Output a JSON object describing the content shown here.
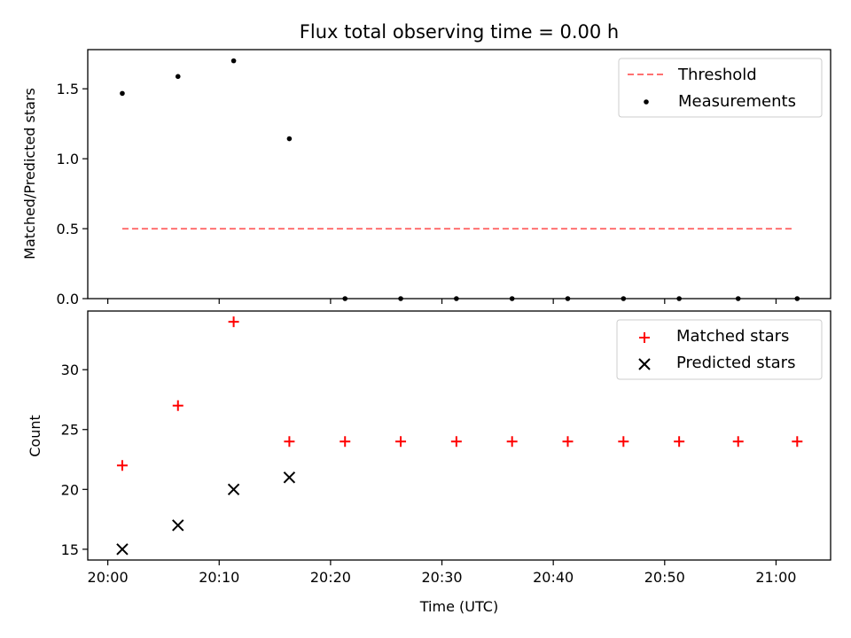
{
  "chart_data": {
    "title": "Flux total observing time = 0.00 h",
    "xlabel": "Time (UTC)",
    "x_ticks": [
      "20:00",
      "20:10",
      "20:20",
      "20:30",
      "20:40",
      "20:50",
      "21:00"
    ],
    "x_tick_minutes": [
      0,
      10,
      20,
      30,
      40,
      50,
      60
    ],
    "xlim_minutes": [
      -1.8,
      64.9
    ],
    "top": {
      "type": "scatter",
      "ylabel": "Matched/Predicted stars",
      "ylim": [
        0,
        1.78
      ],
      "y_ticks": [
        0.0,
        0.5,
        1.0,
        1.5
      ],
      "y_tick_labels": [
        "0.0",
        "0.5",
        "1.0",
        "1.5"
      ],
      "threshold": {
        "name": "Threshold",
        "value": 0.5,
        "x_start": 1.3,
        "x_end": 61.6,
        "color": "#ff7070"
      },
      "measurements": {
        "name": "Measurements",
        "color": "#000000",
        "x": [
          1.3,
          6.3,
          11.3,
          16.3,
          21.3,
          26.3,
          31.3,
          36.3,
          41.3,
          46.3,
          51.3,
          56.6,
          61.9
        ],
        "y": [
          1.467,
          1.588,
          1.7,
          1.143,
          0,
          0,
          0,
          0,
          0,
          0,
          0,
          0,
          0
        ]
      },
      "legend_position": "top-right"
    },
    "bottom": {
      "type": "scatter",
      "ylabel": "Count",
      "ylim": [
        14.1,
        34.9
      ],
      "y_ticks": [
        15,
        20,
        25,
        30
      ],
      "y_tick_labels": [
        "15",
        "20",
        "25",
        "30"
      ],
      "series": [
        {
          "name": "Matched stars",
          "marker": "plus",
          "color": "#ff0000",
          "x": [
            1.3,
            6.3,
            11.3,
            16.3,
            21.3,
            26.3,
            31.3,
            36.3,
            41.3,
            46.3,
            51.3,
            56.6,
            61.9
          ],
          "y": [
            22,
            27,
            34,
            24,
            24,
            24,
            24,
            24,
            24,
            24,
            24,
            24,
            24
          ]
        },
        {
          "name": "Predicted stars",
          "marker": "x",
          "color": "#000000",
          "x": [
            1.3,
            6.3,
            11.3,
            16.3
          ],
          "y": [
            15,
            17,
            20,
            21
          ]
        }
      ],
      "legend_position": "top-right"
    }
  }
}
